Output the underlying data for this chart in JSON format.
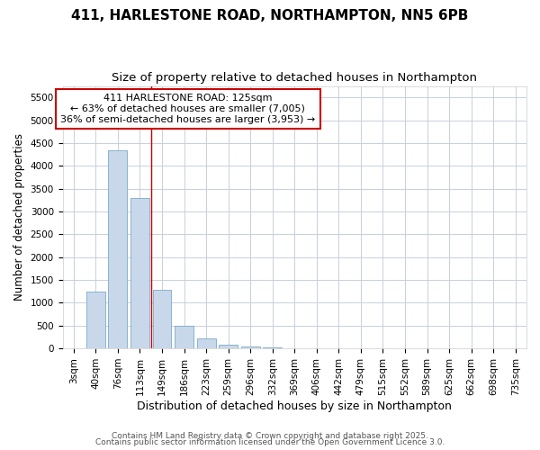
{
  "title_line1": "411, HARLESTONE ROAD, NORTHAMPTON, NN5 6PB",
  "title_line2": "Size of property relative to detached houses in Northampton",
  "xlabel": "Distribution of detached houses by size in Northampton",
  "ylabel": "Number of detached properties",
  "bar_color": "#c8d8ea",
  "bar_edge_color": "#7aaac8",
  "categories": [
    "3sqm",
    "40sqm",
    "76sqm",
    "113sqm",
    "149sqm",
    "186sqm",
    "223sqm",
    "259sqm",
    "296sqm",
    "332sqm",
    "369sqm",
    "406sqm",
    "442sqm",
    "479sqm",
    "515sqm",
    "552sqm",
    "589sqm",
    "625sqm",
    "662sqm",
    "698sqm",
    "735sqm"
  ],
  "values": [
    0,
    1250,
    4350,
    3300,
    1275,
    500,
    225,
    75,
    50,
    25,
    10,
    5,
    0,
    0,
    0,
    0,
    0,
    0,
    0,
    0,
    0
  ],
  "ylim": [
    0,
    5750
  ],
  "yticks": [
    0,
    500,
    1000,
    1500,
    2000,
    2500,
    3000,
    3500,
    4000,
    4500,
    5000,
    5500
  ],
  "vline_x": 3.5,
  "annotation_text": "411 HARLESTONE ROAD: 125sqm\n← 63% of detached houses are smaller (7,005)\n36% of semi-detached houses are larger (3,953) →",
  "annotation_box_facecolor": "#ffffff",
  "annotation_box_edgecolor": "#cc0000",
  "plot_bg_color": "#ffffff",
  "fig_bg_color": "#ffffff",
  "grid_color": "#c8d0dc",
  "footer_line1": "Contains HM Land Registry data © Crown copyright and database right 2025.",
  "footer_line2": "Contains public sector information licensed under the Open Government Licence 3.0.",
  "title_fontsize": 11,
  "subtitle_fontsize": 9.5,
  "xlabel_fontsize": 9,
  "ylabel_fontsize": 8.5,
  "tick_fontsize": 7.5,
  "annot_fontsize": 8,
  "footer_fontsize": 6.5
}
